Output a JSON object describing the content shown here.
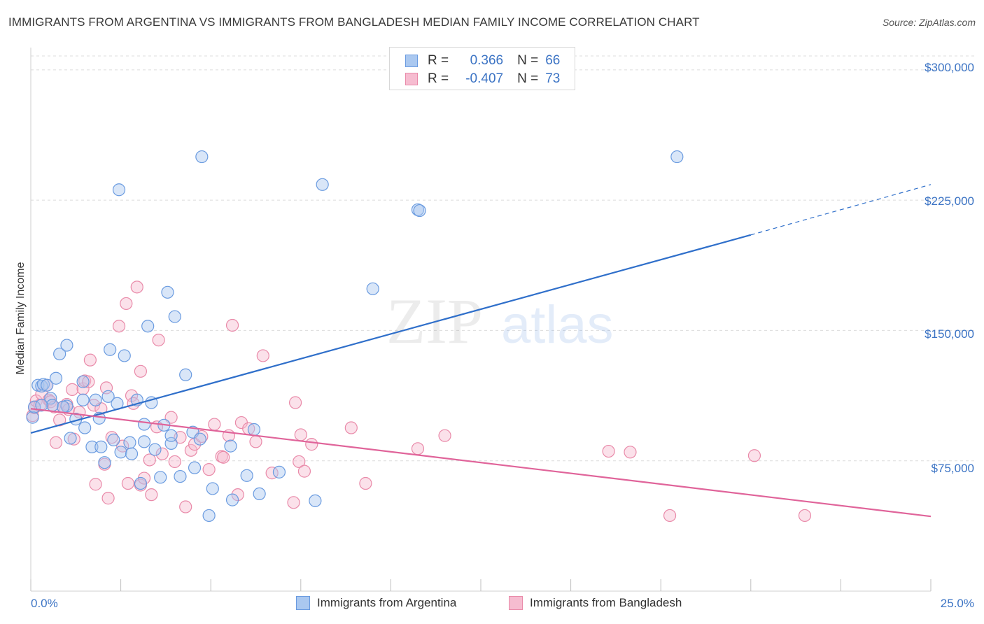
{
  "title": "IMMIGRANTS FROM ARGENTINA VS IMMIGRANTS FROM BANGLADESH MEDIAN FAMILY INCOME CORRELATION CHART",
  "source": "Source: ZipAtlas.com",
  "watermark": {
    "zip": "ZIP",
    "atlas": "atlas"
  },
  "stats": {
    "argentina": {
      "r_label": "R =",
      "r_value": "0.366",
      "n_label": "N =",
      "n_value": "66"
    },
    "bangladesh": {
      "r_label": "R =",
      "r_value": "-0.407",
      "n_label": "N =",
      "n_value": "73"
    }
  },
  "colors": {
    "argentina_fill": "#aac8f0",
    "argentina_stroke": "#6a9be0",
    "argentina_line": "#2f6fca",
    "bangladesh_fill": "#f6bcd0",
    "bangladesh_stroke": "#e98aa9",
    "bangladesh_line": "#e0649a",
    "axis_text": "#3b73c4",
    "grid": "#dcdcdc"
  },
  "chart_data": {
    "type": "scatter",
    "title": "IMMIGRANTS FROM ARGENTINA VS IMMIGRANTS FROM BANGLADESH MEDIAN FAMILY INCOME CORRELATION CHART",
    "xlabel": "",
    "ylabel": "Median Family Income",
    "x_tick_labels": [
      "0.0%",
      "25.0%"
    ],
    "y_tick_labels": [
      "$75,000",
      "$150,000",
      "$225,000",
      "$300,000"
    ],
    "y_ticks": [
      75000,
      150000,
      225000,
      300000
    ],
    "xlim": [
      0,
      25
    ],
    "ylim": [
      0,
      308000
    ],
    "grid": true,
    "legend_placement": "bottom-center",
    "series": [
      {
        "name": "Immigrants from Argentina",
        "trend": {
          "x": [
            0.0,
            20.0
          ],
          "y": [
            91000,
            205000
          ],
          "dashed_to": {
            "x": 25.0,
            "y": 234000
          }
        },
        "points": [
          [
            0.05,
            100000
          ],
          [
            0.1,
            106000
          ],
          [
            0.2,
            118500
          ],
          [
            0.3,
            118000
          ],
          [
            0.35,
            119000
          ],
          [
            0.45,
            118500
          ],
          [
            0.55,
            111000
          ],
          [
            0.6,
            107000
          ],
          [
            0.7,
            122500
          ],
          [
            0.8,
            136500
          ],
          [
            1.0,
            141500
          ],
          [
            1.0,
            106500
          ],
          [
            1.1,
            88000
          ],
          [
            1.25,
            99000
          ],
          [
            1.45,
            120500
          ],
          [
            1.45,
            110000
          ],
          [
            1.5,
            94000
          ],
          [
            1.7,
            83000
          ],
          [
            1.8,
            110000
          ],
          [
            1.9,
            99500
          ],
          [
            1.95,
            83000
          ],
          [
            2.05,
            74000
          ],
          [
            2.15,
            112000
          ],
          [
            2.2,
            139000
          ],
          [
            2.3,
            87000
          ],
          [
            2.4,
            108000
          ],
          [
            2.45,
            231000
          ],
          [
            2.5,
            80000
          ],
          [
            2.6,
            135500
          ],
          [
            2.75,
            85500
          ],
          [
            2.8,
            79000
          ],
          [
            2.95,
            110000
          ],
          [
            3.05,
            62000
          ],
          [
            3.15,
            96000
          ],
          [
            3.15,
            86000
          ],
          [
            3.25,
            152500
          ],
          [
            3.35,
            108500
          ],
          [
            3.45,
            81500
          ],
          [
            3.6,
            65500
          ],
          [
            3.7,
            95500
          ],
          [
            3.8,
            172000
          ],
          [
            3.9,
            85000
          ],
          [
            3.9,
            89500
          ],
          [
            4.0,
            158000
          ],
          [
            4.15,
            66000
          ],
          [
            4.3,
            124500
          ],
          [
            4.5,
            91500
          ],
          [
            4.55,
            71000
          ],
          [
            4.7,
            87500
          ],
          [
            4.75,
            250000
          ],
          [
            4.95,
            43500
          ],
          [
            5.05,
            59000
          ],
          [
            5.55,
            83500
          ],
          [
            5.6,
            52500
          ],
          [
            6.0,
            66500
          ],
          [
            6.2,
            93000
          ],
          [
            6.35,
            56000
          ],
          [
            6.9,
            68500
          ],
          [
            7.9,
            52000
          ],
          [
            8.1,
            234000
          ],
          [
            9.5,
            174000
          ],
          [
            10.75,
            219500
          ],
          [
            10.8,
            219000
          ],
          [
            17.95,
            250000
          ],
          [
            0.3,
            107000
          ],
          [
            0.9,
            106000
          ]
        ]
      },
      {
        "name": "Immigrants from Bangladesh",
        "trend": {
          "x": [
            0.0,
            25.0
          ],
          "y": [
            105000,
            43000
          ]
        },
        "points": [
          [
            0.05,
            101000
          ],
          [
            0.1,
            105500
          ],
          [
            0.15,
            109500
          ],
          [
            0.25,
            107000
          ],
          [
            0.3,
            113500
          ],
          [
            0.45,
            118500
          ],
          [
            0.5,
            110000
          ],
          [
            0.55,
            109000
          ],
          [
            0.65,
            106000
          ],
          [
            0.7,
            85500
          ],
          [
            0.8,
            98500
          ],
          [
            0.9,
            106000
          ],
          [
            1.0,
            107500
          ],
          [
            1.05,
            104500
          ],
          [
            1.15,
            116000
          ],
          [
            1.2,
            87500
          ],
          [
            1.35,
            103000
          ],
          [
            1.45,
            116500
          ],
          [
            1.5,
            121000
          ],
          [
            1.6,
            120500
          ],
          [
            1.65,
            133000
          ],
          [
            1.75,
            107000
          ],
          [
            1.8,
            61500
          ],
          [
            1.95,
            105000
          ],
          [
            2.05,
            73000
          ],
          [
            2.1,
            117000
          ],
          [
            2.15,
            53500
          ],
          [
            2.25,
            88500
          ],
          [
            2.45,
            152500
          ],
          [
            2.55,
            83500
          ],
          [
            2.65,
            165500
          ],
          [
            2.7,
            62000
          ],
          [
            2.8,
            112500
          ],
          [
            2.85,
            108000
          ],
          [
            2.95,
            175000
          ],
          [
            3.05,
            126500
          ],
          [
            3.05,
            61000
          ],
          [
            3.15,
            65000
          ],
          [
            3.3,
            75500
          ],
          [
            3.35,
            55500
          ],
          [
            3.5,
            94500
          ],
          [
            3.55,
            144500
          ],
          [
            3.65,
            79000
          ],
          [
            3.9,
            100000
          ],
          [
            4.0,
            74500
          ],
          [
            4.15,
            88500
          ],
          [
            4.3,
            48500
          ],
          [
            4.45,
            81000
          ],
          [
            4.55,
            84500
          ],
          [
            4.75,
            89000
          ],
          [
            4.95,
            70000
          ],
          [
            5.1,
            96000
          ],
          [
            5.3,
            77500
          ],
          [
            5.35,
            77000
          ],
          [
            5.5,
            89500
          ],
          [
            5.6,
            153000
          ],
          [
            5.75,
            55500
          ],
          [
            5.85,
            97000
          ],
          [
            6.05,
            93500
          ],
          [
            6.25,
            86000
          ],
          [
            6.45,
            135500
          ],
          [
            6.7,
            68000
          ],
          [
            7.3,
            51000
          ],
          [
            7.35,
            108500
          ],
          [
            7.45,
            74500
          ],
          [
            7.5,
            90000
          ],
          [
            7.6,
            69000
          ],
          [
            7.8,
            84500
          ],
          [
            8.9,
            94000
          ],
          [
            9.3,
            62000
          ],
          [
            10.75,
            82000
          ],
          [
            11.5,
            89500
          ],
          [
            16.05,
            80500
          ]
        ],
        "extra_points": [
          [
            16.65,
            80000
          ],
          [
            17.75,
            43500
          ],
          [
            20.1,
            78000
          ],
          [
            21.5,
            43500
          ]
        ]
      }
    ]
  }
}
